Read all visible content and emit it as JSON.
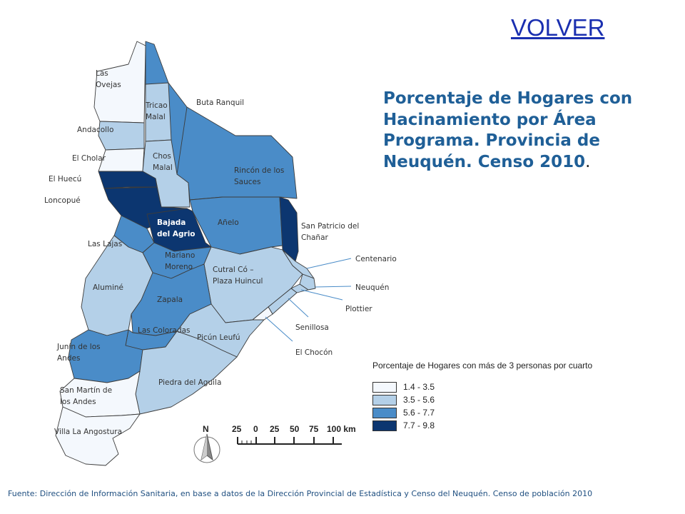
{
  "nav": {
    "volver_label": "VOLVER"
  },
  "title": {
    "text": "Porcentaje de Hogares con Hacinamiento por Área Programa. Provincia de Neuquén. Censo 2010",
    "trailing": "."
  },
  "colors": {
    "class_1": "#f4f8fd",
    "class_2": "#b4d0e8",
    "class_3": "#4a8cc8",
    "class_4": "#0c3670",
    "outline": "#3c3c3c",
    "title": "#1f5f97"
  },
  "legend": {
    "title": "Porcentaje de Hogares con más de 3 personas por cuarto",
    "classes": [
      {
        "label": "1.4 - 3.5",
        "color": "#f4f8fd"
      },
      {
        "label": "3.5 - 5.6",
        "color": "#b4d0e8"
      },
      {
        "label": "5.6 - 7.7",
        "color": "#4a8cc8"
      },
      {
        "label": "7.7 - 9.8",
        "color": "#0c3670"
      }
    ]
  },
  "scale_bar": {
    "labels": [
      "25",
      "0",
      "25",
      "50",
      "75",
      "100 km"
    ]
  },
  "north_arrow": {
    "label": "N"
  },
  "areas": [
    {
      "name": "Las Ovejas",
      "class": 1
    },
    {
      "name": "Buta Ranquil",
      "class": 3
    },
    {
      "name": "Tricao Malal",
      "class": 2
    },
    {
      "name": "Andacollo",
      "class": 2
    },
    {
      "name": "El Cholar",
      "class": 1
    },
    {
      "name": "Chos Malal",
      "class": 2
    },
    {
      "name": "El Huecú",
      "class": 4
    },
    {
      "name": "Rincón de los Sauces",
      "class": 3
    },
    {
      "name": "Loncopué",
      "class": 4
    },
    {
      "name": "Bajada del Agrio",
      "class": 4
    },
    {
      "name": "Añelo",
      "class": 3
    },
    {
      "name": "San Patricio del Chañar",
      "class": 4
    },
    {
      "name": "Las Lajas",
      "class": 3
    },
    {
      "name": "Mariano Moreno",
      "class": 3
    },
    {
      "name": "Centenario",
      "class": 2
    },
    {
      "name": "Cutral Có – Plaza Huincul",
      "class": 2
    },
    {
      "name": "Aluminé",
      "class": 2
    },
    {
      "name": "Neuquén",
      "class": 2
    },
    {
      "name": "Zapala",
      "class": 3
    },
    {
      "name": "Plottier",
      "class": 2
    },
    {
      "name": "Senillosa",
      "class": 2
    },
    {
      "name": "Las Coloradas",
      "class": 3
    },
    {
      "name": "Picún Leufú",
      "class": 2
    },
    {
      "name": "Junín de los Andes",
      "class": 3
    },
    {
      "name": "El Chocón",
      "class": 1
    },
    {
      "name": "Piedra del Aguila",
      "class": 2
    },
    {
      "name": "San Martín de los Andes",
      "class": 1
    },
    {
      "name": "Villa La Angostura",
      "class": 1
    }
  ],
  "source_note": "Fuente: Dirección de Información Sanitaria, en base a datos de la Dirección Provincial de Estadística y Censo del Neuquén. Censo de población 2010"
}
